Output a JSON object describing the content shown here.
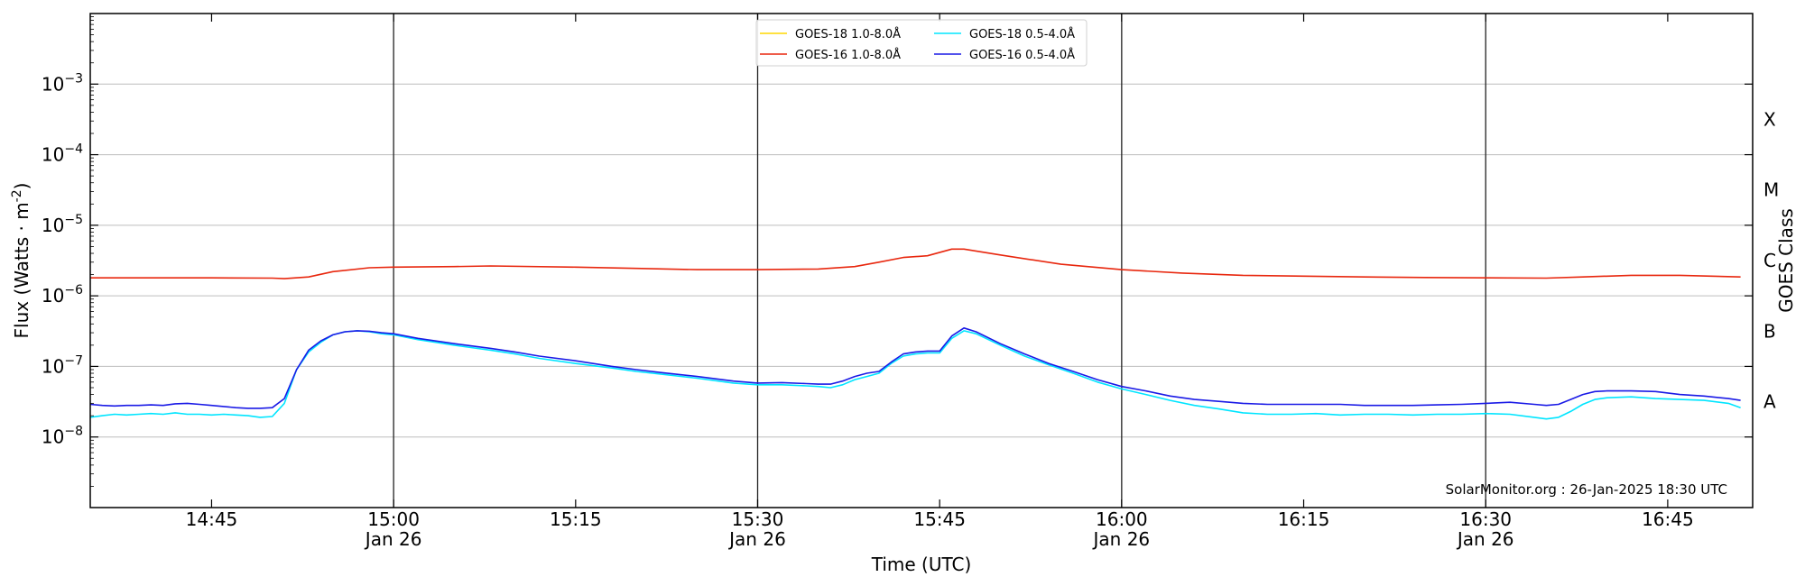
{
  "chart_data": {
    "type": "line",
    "title": "",
    "xlabel": "Time (UTC)",
    "ylabel": "Flux (Watts · m",
    "ylabel_sup": "-2",
    "ylabel_close": ")",
    "y2label": "GOES Class",
    "y_scale": "log",
    "ylim": [
      1e-09,
      0.01
    ],
    "xlim": [
      "14:35",
      "16:52"
    ],
    "grid": "horizontal",
    "legend_position": "top-center",
    "watermark": "SolarMonitor.org : 26-Jan-2025 18:30 UTC",
    "y_ticks": [
      {
        "value": 1e-08,
        "base": "10",
        "exp": "−8"
      },
      {
        "value": 1e-07,
        "base": "10",
        "exp": "−7"
      },
      {
        "value": 1e-06,
        "base": "10",
        "exp": "−6"
      },
      {
        "value": 1e-05,
        "base": "10",
        "exp": "−5"
      },
      {
        "value": 0.0001,
        "base": "10",
        "exp": "−4"
      },
      {
        "value": 0.001,
        "base": "10",
        "exp": "−3"
      }
    ],
    "x_ticks": [
      {
        "time": "14:45",
        "label": "14:45",
        "date": ""
      },
      {
        "time": "15:00",
        "label": "15:00",
        "date": "Jan 26"
      },
      {
        "time": "15:15",
        "label": "15:15",
        "date": ""
      },
      {
        "time": "15:30",
        "label": "15:30",
        "date": "Jan 26"
      },
      {
        "time": "15:45",
        "label": "15:45",
        "date": ""
      },
      {
        "time": "16:00",
        "label": "16:00",
        "date": "Jan 26"
      },
      {
        "time": "16:15",
        "label": "16:15",
        "date": ""
      },
      {
        "time": "16:30",
        "label": "16:30",
        "date": "Jan 26"
      },
      {
        "time": "16:45",
        "label": "16:45",
        "date": ""
      }
    ],
    "vertical_lines": [
      "15:00",
      "15:30",
      "16:00",
      "16:30"
    ],
    "goes_classes": [
      {
        "label": "A",
        "value": 3.16e-08
      },
      {
        "label": "B",
        "value": 3.16e-07
      },
      {
        "label": "C",
        "value": 3.16e-06
      },
      {
        "label": "M",
        "value": 3.16e-05
      },
      {
        "label": "X",
        "value": 0.000316
      }
    ],
    "series": [
      {
        "name": "GOES-18 1.0-8.0Å",
        "color": "#ffd700",
        "x": [],
        "values": []
      },
      {
        "name": "GOES-16 1.0-8.0Å",
        "color": "#e8270e",
        "x": [
          "14:35",
          "14:40",
          "14:45",
          "14:50",
          "14:51",
          "14:53",
          "14:55",
          "14:58",
          "15:00",
          "15:05",
          "15:08",
          "15:15",
          "15:20",
          "15:25",
          "15:30",
          "15:35",
          "15:38",
          "15:40",
          "15:42",
          "15:44",
          "15:46",
          "15:47",
          "15:50",
          "15:55",
          "16:00",
          "16:05",
          "16:10",
          "16:15",
          "16:20",
          "16:25",
          "16:30",
          "16:35",
          "16:38",
          "16:42",
          "16:46",
          "16:51"
        ],
        "values": [
          1.8e-06,
          1.8e-06,
          1.8e-06,
          1.78e-06,
          1.75e-06,
          1.85e-06,
          2.2e-06,
          2.5e-06,
          2.55e-06,
          2.6e-06,
          2.65e-06,
          2.55e-06,
          2.45e-06,
          2.35e-06,
          2.35e-06,
          2.4e-06,
          2.6e-06,
          3e-06,
          3.5e-06,
          3.7e-06,
          4.6e-06,
          4.6e-06,
          3.8e-06,
          2.8e-06,
          2.35e-06,
          2.1e-06,
          1.95e-06,
          1.9e-06,
          1.85e-06,
          1.82e-06,
          1.8e-06,
          1.78e-06,
          1.85e-06,
          1.95e-06,
          1.95e-06,
          1.85e-06
        ]
      },
      {
        "name": "GOES-18 0.5-4.0Å",
        "color": "#00e5ff",
        "x": [
          "14:35",
          "14:36",
          "14:37",
          "14:38",
          "14:39",
          "14:40",
          "14:41",
          "14:42",
          "14:43",
          "14:44",
          "14:45",
          "14:46",
          "14:47",
          "14:48",
          "14:49",
          "14:50",
          "14:51",
          "14:52",
          "14:53",
          "14:54",
          "14:55",
          "14:56",
          "14:57",
          "14:58",
          "14:59",
          "15:00",
          "15:02",
          "15:05",
          "15:08",
          "15:10",
          "15:12",
          "15:15",
          "15:18",
          "15:20",
          "15:22",
          "15:25",
          "15:28",
          "15:30",
          "15:32",
          "15:34",
          "15:35",
          "15:36",
          "15:37",
          "15:38",
          "15:39",
          "15:40",
          "15:41",
          "15:42",
          "15:43",
          "15:44",
          "15:45",
          "15:46",
          "15:47",
          "15:48",
          "15:50",
          "15:52",
          "15:54",
          "15:56",
          "15:58",
          "16:00",
          "16:02",
          "16:04",
          "16:06",
          "16:08",
          "16:10",
          "16:12",
          "16:14",
          "16:16",
          "16:18",
          "16:20",
          "16:22",
          "16:24",
          "16:26",
          "16:28",
          "16:30",
          "16:32",
          "16:34",
          "16:35",
          "16:36",
          "16:37",
          "16:38",
          "16:39",
          "16:40",
          "16:42",
          "16:44",
          "16:46",
          "16:48",
          "16:50",
          "16:51"
        ],
        "values": [
          1.9e-08,
          2e-08,
          2.1e-08,
          2.05e-08,
          2.1e-08,
          2.15e-08,
          2.1e-08,
          2.2e-08,
          2.1e-08,
          2.1e-08,
          2.05e-08,
          2.1e-08,
          2.05e-08,
          2e-08,
          1.9e-08,
          1.95e-08,
          3e-08,
          9e-08,
          1.6e-07,
          2.2e-07,
          2.8e-07,
          3.1e-07,
          3.2e-07,
          3.1e-07,
          2.9e-07,
          2.8e-07,
          2.4e-07,
          2e-07,
          1.7e-07,
          1.5e-07,
          1.3e-07,
          1.1e-07,
          9.5e-08,
          8.5e-08,
          7.8e-08,
          6.8e-08,
          5.8e-08,
          5.5e-08,
          5.5e-08,
          5.3e-08,
          5.2e-08,
          5e-08,
          5.5e-08,
          6.5e-08,
          7.2e-08,
          8e-08,
          1.1e-07,
          1.4e-07,
          1.5e-07,
          1.55e-07,
          1.55e-07,
          2.5e-07,
          3.2e-07,
          2.9e-07,
          2e-07,
          1.4e-07,
          1.05e-07,
          8e-08,
          6e-08,
          4.8e-08,
          4e-08,
          3.3e-08,
          2.8e-08,
          2.5e-08,
          2.2e-08,
          2.1e-08,
          2.1e-08,
          2.15e-08,
          2.05e-08,
          2.1e-08,
          2.1e-08,
          2.05e-08,
          2.1e-08,
          2.1e-08,
          2.15e-08,
          2.1e-08,
          1.9e-08,
          1.8e-08,
          1.9e-08,
          2.3e-08,
          2.9e-08,
          3.4e-08,
          3.6e-08,
          3.7e-08,
          3.5e-08,
          3.4e-08,
          3.3e-08,
          3e-08,
          2.6e-08
        ]
      },
      {
        "name": "GOES-16 0.5-4.0Å",
        "color": "#1a1ae6",
        "x": [
          "14:35",
          "14:36",
          "14:37",
          "14:38",
          "14:39",
          "14:40",
          "14:41",
          "14:42",
          "14:43",
          "14:44",
          "14:45",
          "14:46",
          "14:47",
          "14:48",
          "14:49",
          "14:50",
          "14:51",
          "14:52",
          "14:53",
          "14:54",
          "14:55",
          "14:56",
          "14:57",
          "14:58",
          "14:59",
          "15:00",
          "15:02",
          "15:05",
          "15:08",
          "15:10",
          "15:12",
          "15:15",
          "15:18",
          "15:20",
          "15:22",
          "15:25",
          "15:28",
          "15:30",
          "15:32",
          "15:34",
          "15:35",
          "15:36",
          "15:37",
          "15:38",
          "15:39",
          "15:40",
          "15:41",
          "15:42",
          "15:43",
          "15:44",
          "15:45",
          "15:46",
          "15:47",
          "15:48",
          "15:50",
          "15:52",
          "15:54",
          "15:56",
          "15:58",
          "16:00",
          "16:02",
          "16:04",
          "16:06",
          "16:08",
          "16:10",
          "16:12",
          "16:14",
          "16:16",
          "16:18",
          "16:20",
          "16:22",
          "16:24",
          "16:26",
          "16:28",
          "16:30",
          "16:32",
          "16:34",
          "16:35",
          "16:36",
          "16:37",
          "16:38",
          "16:39",
          "16:40",
          "16:42",
          "16:44",
          "16:46",
          "16:48",
          "16:50",
          "16:51"
        ],
        "values": [
          2.9e-08,
          2.8e-08,
          2.75e-08,
          2.8e-08,
          2.8e-08,
          2.85e-08,
          2.8e-08,
          2.95e-08,
          3e-08,
          2.9e-08,
          2.8e-08,
          2.7e-08,
          2.6e-08,
          2.55e-08,
          2.55e-08,
          2.6e-08,
          3.5e-08,
          9e-08,
          1.7e-07,
          2.3e-07,
          2.8e-07,
          3.1e-07,
          3.2e-07,
          3.15e-07,
          3e-07,
          2.9e-07,
          2.5e-07,
          2.1e-07,
          1.8e-07,
          1.6e-07,
          1.4e-07,
          1.2e-07,
          1e-07,
          9e-08,
          8.2e-08,
          7.2e-08,
          6.2e-08,
          5.8e-08,
          5.9e-08,
          5.7e-08,
          5.6e-08,
          5.6e-08,
          6.2e-08,
          7.2e-08,
          8e-08,
          8.5e-08,
          1.15e-07,
          1.5e-07,
          1.6e-07,
          1.65e-07,
          1.65e-07,
          2.7e-07,
          3.5e-07,
          3.1e-07,
          2.1e-07,
          1.5e-07,
          1.1e-07,
          8.5e-08,
          6.5e-08,
          5.2e-08,
          4.5e-08,
          3.8e-08,
          3.4e-08,
          3.2e-08,
          3e-08,
          2.9e-08,
          2.9e-08,
          2.9e-08,
          2.9e-08,
          2.8e-08,
          2.8e-08,
          2.8e-08,
          2.85e-08,
          2.9e-08,
          3e-08,
          3.1e-08,
          2.9e-08,
          2.8e-08,
          2.9e-08,
          3.4e-08,
          4e-08,
          4.4e-08,
          4.5e-08,
          4.5e-08,
          4.4e-08,
          4e-08,
          3.8e-08,
          3.5e-08,
          3.3e-08
        ]
      }
    ]
  }
}
